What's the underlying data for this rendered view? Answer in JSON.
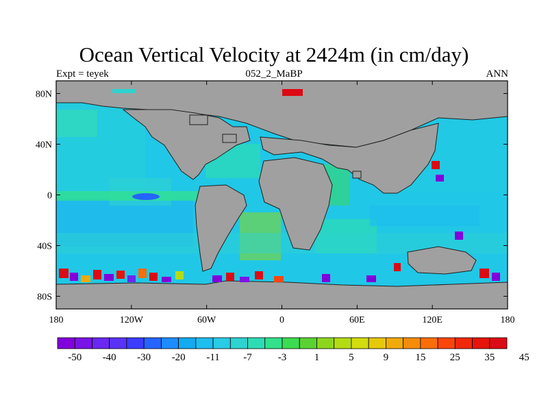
{
  "title": "Ocean Vertical Velocity at 2424m (in cm/day)",
  "left_label": "Expt = teyek",
  "center_label": "052_2_MaBP",
  "right_label": "ANN",
  "map": {
    "lon_ticks": [
      "180",
      "120W",
      "60W",
      "0",
      "60E",
      "120E",
      "180"
    ],
    "lat_ticks": [
      "80N",
      "40N",
      "0",
      "40S",
      "80S"
    ],
    "land_color": "#a0a0a0",
    "ocean_base_color": "#21c7e6"
  },
  "colorbar": {
    "labels": [
      "-50",
      "-40",
      "-30",
      "-20",
      "-11",
      "-7",
      "-3",
      "1",
      "5",
      "9",
      "15",
      "25",
      "35",
      "45"
    ],
    "colors": [
      "#8200dc",
      "#7a14e6",
      "#6a28f0",
      "#5a32f5",
      "#3c3cff",
      "#2464ff",
      "#1e8cff",
      "#12aaf0",
      "#1ebeee",
      "#2acbe4",
      "#2ed2d0",
      "#2edcb4",
      "#32e18c",
      "#3cdc50",
      "#5ad232",
      "#8cd71e",
      "#b4dc14",
      "#d2dc0f",
      "#e6c80a",
      "#f0aa0a",
      "#f58c0a",
      "#fa6e0a",
      "#fa460a",
      "#f0280a",
      "#e6140a",
      "#dc0a14"
    ]
  }
}
